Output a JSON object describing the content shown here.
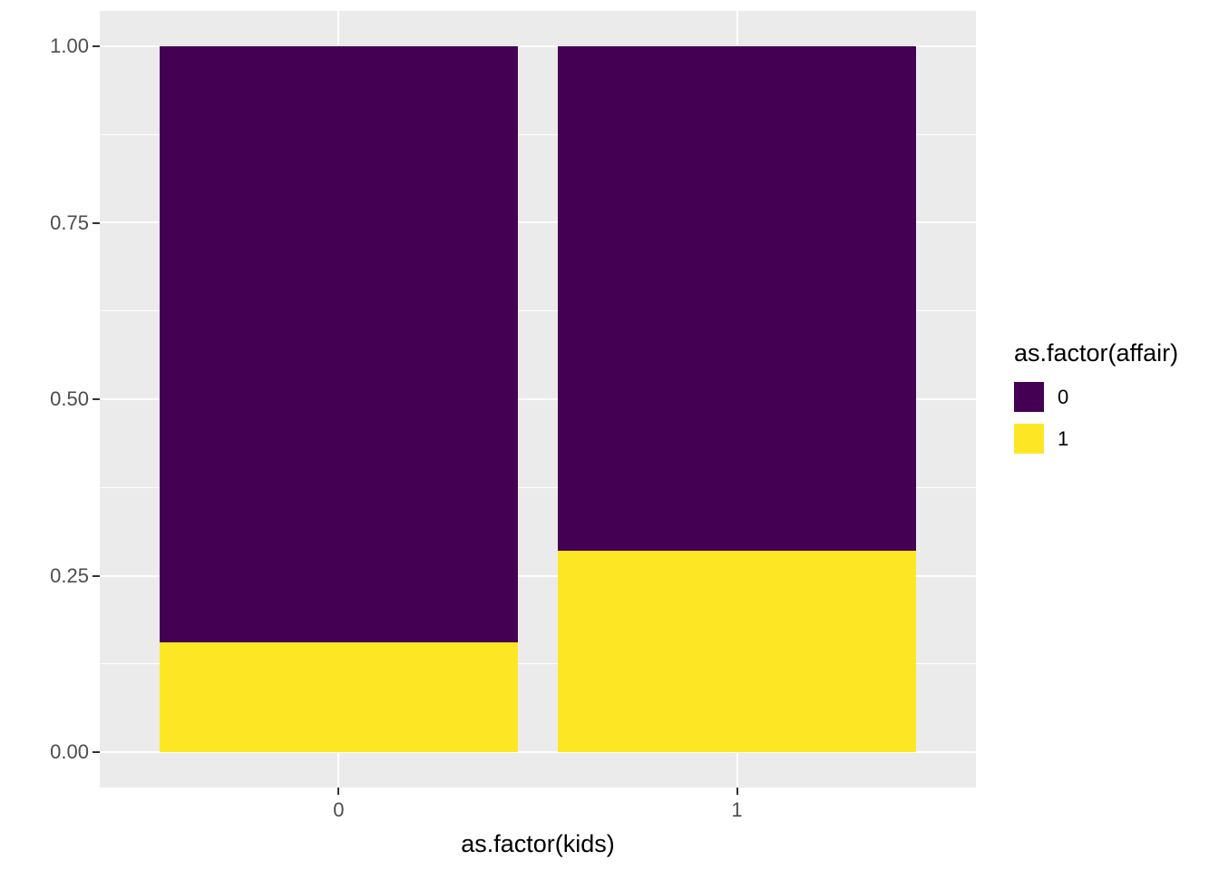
{
  "chart_data": {
    "type": "bar",
    "subtype": "stacked-fill",
    "title": "",
    "xlabel": "as.factor(kids)",
    "ylabel": "",
    "categories": [
      "0",
      "1"
    ],
    "series": [
      {
        "name": "0",
        "color": "#440154",
        "values": [
          0.845,
          0.715
        ]
      },
      {
        "name": "1",
        "color": "#FDE725",
        "values": [
          0.155,
          0.285
        ]
      }
    ],
    "ylim": [
      0,
      1
    ],
    "y_major": [
      0,
      0.25,
      0.5,
      0.75,
      1.0
    ],
    "y_minor": [
      0.125,
      0.375,
      0.625,
      0.875
    ],
    "y_tick_labels": [
      "1.00",
      "0.75",
      "0.50",
      "0.25",
      "0.00"
    ],
    "x_tick_labels": [
      "0",
      "1"
    ],
    "grid": "on",
    "legend": {
      "position": "right",
      "title": "as.factor(affair)",
      "entries": [
        {
          "label": "0",
          "color": "#440154"
        },
        {
          "label": "1",
          "color": "#FDE725"
        }
      ]
    },
    "colors": {
      "panel_background": "#EBEBEB",
      "gridline": "#FFFFFF",
      "axis_text": "#4D4D4D",
      "tick_mark": "#333333"
    }
  }
}
